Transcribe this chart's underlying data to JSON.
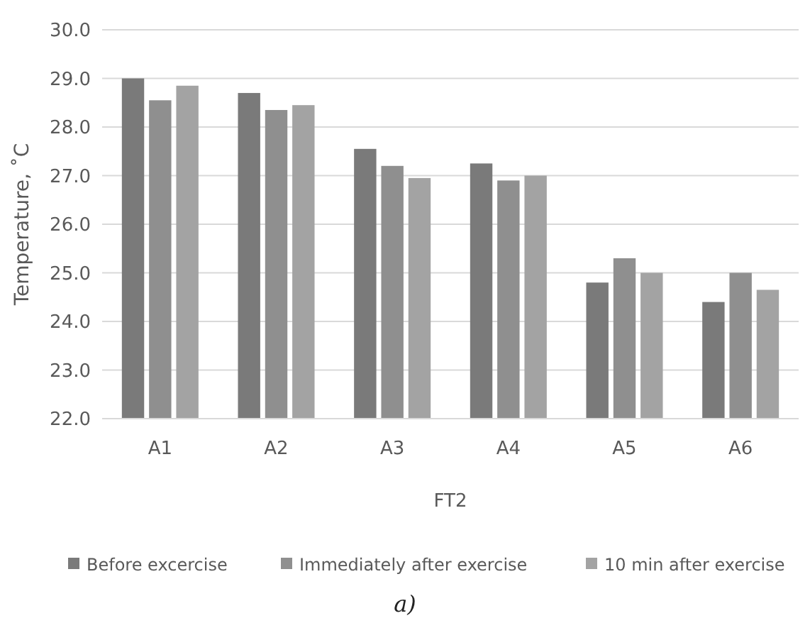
{
  "chart_data": {
    "type": "bar",
    "xlabel": "FT2",
    "ylabel": "Temperature, ˚C",
    "categories": [
      "A1",
      "A2",
      "A3",
      "A4",
      "A5",
      "A6"
    ],
    "series": [
      {
        "name": "Before excercise",
        "color": "#7a7a7a",
        "values": [
          29.0,
          28.7,
          27.55,
          27.25,
          24.8,
          24.4
        ]
      },
      {
        "name": "Immediately after exercise",
        "color": "#8f8f8f",
        "values": [
          28.55,
          28.35,
          27.2,
          26.9,
          25.3,
          25.0
        ]
      },
      {
        "name": "10 min after exercise",
        "color": "#a3a3a3",
        "values": [
          28.85,
          28.45,
          26.95,
          27.0,
          25.0,
          24.65
        ]
      }
    ],
    "ylim": [
      22,
      30
    ],
    "yticks": [
      {
        "value": 22,
        "label": "22.0"
      },
      {
        "value": 23,
        "label": "23.0"
      },
      {
        "value": 24,
        "label": "24.0"
      },
      {
        "value": 25,
        "label": "25.0"
      },
      {
        "value": 26,
        "label": "26.0"
      },
      {
        "value": 27,
        "label": "27.0"
      },
      {
        "value": 28,
        "label": "28.0"
      },
      {
        "value": 29,
        "label": "29.0"
      },
      {
        "value": 30,
        "label": "30.0"
      }
    ],
    "grid": "y",
    "legend": "bottom",
    "annotations": [
      "a)"
    ]
  }
}
